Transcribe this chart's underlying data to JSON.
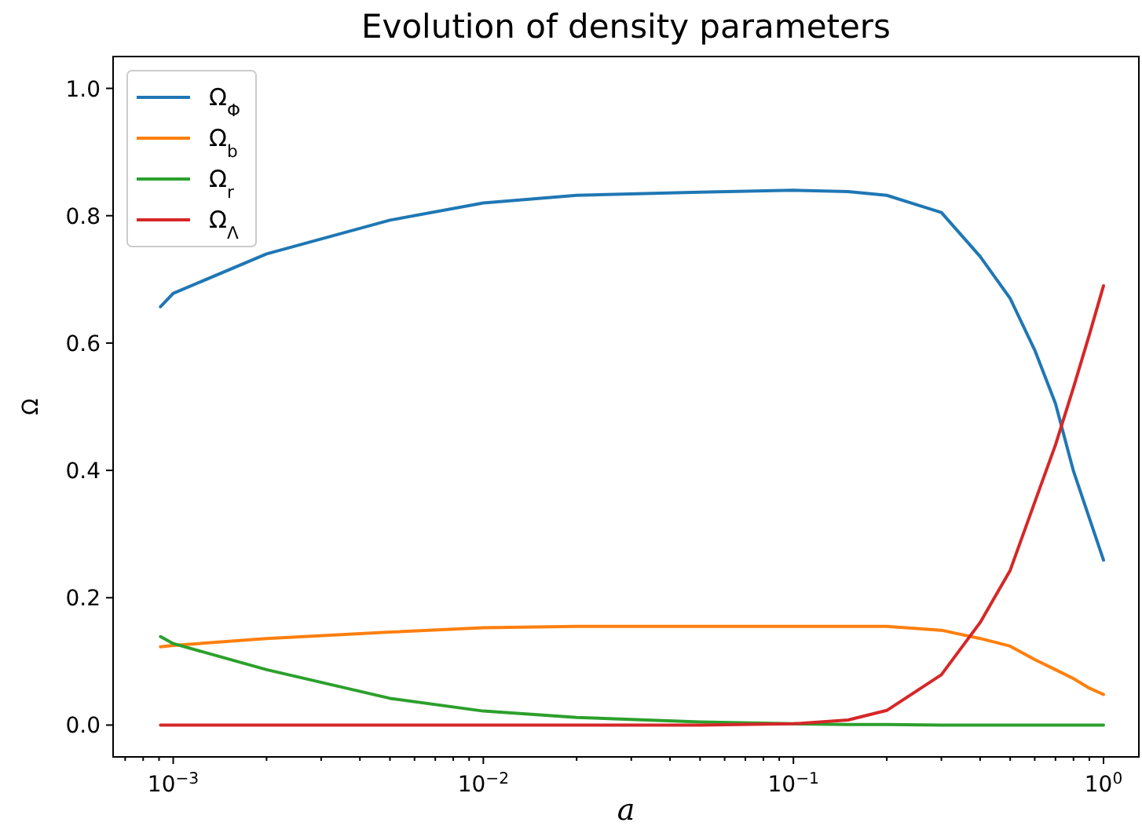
{
  "chart_data": {
    "type": "line",
    "title": "Evolution of density parameters",
    "xlabel": "a",
    "ylabel": "Ω",
    "log": "x",
    "grid": false,
    "legend": "top left",
    "marker": "none",
    "line_style": "solid",
    "x": [
      0.00091,
      0.001,
      0.002,
      0.005,
      0.01,
      0.02,
      0.05,
      0.1,
      0.15,
      0.2,
      0.3,
      0.4,
      0.5,
      0.6,
      0.7,
      0.8,
      0.9,
      1.0
    ],
    "series": [
      {
        "name": "Ω$_{Φ}$",
        "color": "#1f77b4",
        "values": [
          0.657,
          0.678,
          0.74,
          0.793,
          0.82,
          0.832,
          0.837,
          0.84,
          0.838,
          0.832,
          0.805,
          0.736,
          0.67,
          0.589,
          0.505,
          0.399,
          0.325,
          0.259
        ]
      },
      {
        "name": "Ω$_{b}$",
        "color": "#ff7f0e",
        "values": [
          0.123,
          0.125,
          0.136,
          0.146,
          0.153,
          0.155,
          0.155,
          0.155,
          0.155,
          0.155,
          0.149,
          0.136,
          0.124,
          0.103,
          0.087,
          0.073,
          0.058,
          0.048
        ]
      },
      {
        "name": "Ω$_{r}$",
        "color": "#2ca02c",
        "values": [
          0.139,
          0.128,
          0.087,
          0.042,
          0.022,
          0.012,
          0.005,
          0.002,
          0.001,
          0.001,
          0.0,
          0.0,
          0.0,
          0.0,
          0.0,
          0.0,
          0.0,
          0.0
        ]
      },
      {
        "name": "Ω$_{Λ}$",
        "color": "#d62728",
        "values": [
          0.0,
          0.0,
          0.0,
          0.0,
          0.0,
          0.0,
          0.0,
          0.002,
          0.008,
          0.023,
          0.079,
          0.161,
          0.243,
          0.35,
          0.44,
          0.53,
          0.613,
          0.69
        ]
      }
    ],
    "xlim": [
      0.00064,
      1.3
    ],
    "ylim": [
      -0.05,
      1.05
    ],
    "xticks": [
      {
        "value": 0.0007,
        "label": null
      },
      {
        "value": 0.0008,
        "label": null
      },
      {
        "value": 0.0009,
        "label": null
      },
      {
        "value": 0.001,
        "label": "10$^{−3}$"
      },
      {
        "value": 0.002,
        "label": null
      },
      {
        "value": 0.003,
        "label": null
      },
      {
        "value": 0.004,
        "label": null
      },
      {
        "value": 0.005,
        "label": null
      },
      {
        "value": 0.006,
        "label": null
      },
      {
        "value": 0.007,
        "label": null
      },
      {
        "value": 0.008,
        "label": null
      },
      {
        "value": 0.009,
        "label": null
      },
      {
        "value": 0.01,
        "label": "10$^{−2}$"
      },
      {
        "value": 0.02,
        "label": null
      },
      {
        "value": 0.03,
        "label": null
      },
      {
        "value": 0.04,
        "label": null
      },
      {
        "value": 0.05,
        "label": null
      },
      {
        "value": 0.06,
        "label": null
      },
      {
        "value": 0.07,
        "label": null
      },
      {
        "value": 0.08,
        "label": null
      },
      {
        "value": 0.09,
        "label": null
      },
      {
        "value": 0.1,
        "label": "10$^{−1}$"
      },
      {
        "value": 0.2,
        "label": null
      },
      {
        "value": 0.3,
        "label": null
      },
      {
        "value": 0.4,
        "label": null
      },
      {
        "value": 0.5,
        "label": null
      },
      {
        "value": 0.6,
        "label": null
      },
      {
        "value": 0.7,
        "label": null
      },
      {
        "value": 0.8,
        "label": null
      },
      {
        "value": 0.9,
        "label": null
      },
      {
        "value": 1.0,
        "label": "10$^{0}$"
      }
    ],
    "yticks": [
      {
        "value": 0.0,
        "label": "0.0"
      },
      {
        "value": 0.2,
        "label": "0.2"
      },
      {
        "value": 0.4,
        "label": "0.4"
      },
      {
        "value": 0.6,
        "label": "0.6"
      },
      {
        "value": 0.8,
        "label": "0.8"
      },
      {
        "value": 1.0,
        "label": "1.0"
      }
    ]
  }
}
